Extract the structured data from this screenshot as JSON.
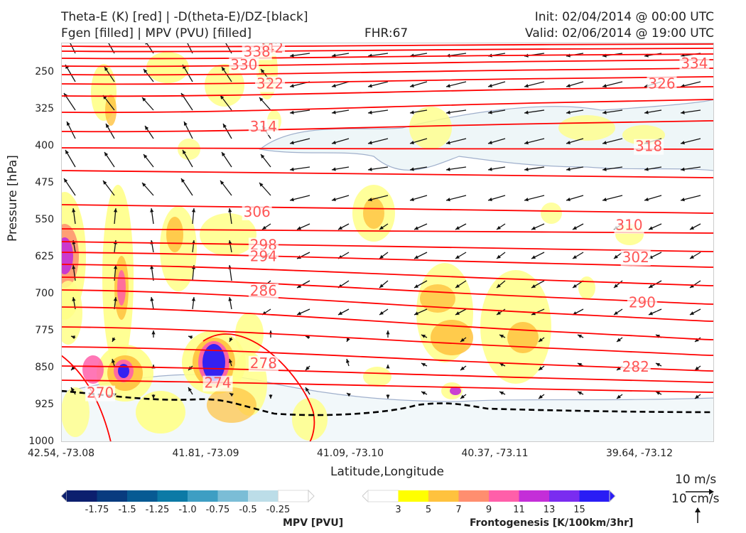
{
  "header": {
    "title_line1": "Theta-E (K) [red] | -D(theta-E)/DZ-[black]",
    "title_line2": "Fgen [filled] | MPV (PVU) [filled]",
    "fhr": "FHR:67",
    "init": "Init: 02/04/2014 @ 00:00 UTC",
    "valid": "Valid: 02/06/2014 @ 19:00 UTC"
  },
  "chart_data": {
    "type": "cross-section",
    "title": "Theta-E (K) [red] | -D(theta-E)/DZ-[black] / Fgen [filled] | MPV (PVU) [filled]",
    "xlabel": "Latitude,Longitude",
    "ylabel": "Pressure [hPa]",
    "x_ticks": [
      "42.54, -73.08",
      "41.81, -73.09",
      "41.09, -73.10",
      "40.37, -73.11",
      "39.64, -73.12"
    ],
    "y_ticks": [
      250,
      325,
      400,
      475,
      550,
      625,
      700,
      775,
      850,
      925,
      1000
    ],
    "ylim": [
      1000,
      190
    ],
    "y_inverted": true,
    "theta_e_contour_labels": [
      {
        "value": 342,
        "x": 0.32,
        "p": 200
      },
      {
        "value": 338,
        "x": 0.3,
        "p": 208
      },
      {
        "value": 330,
        "x": 0.28,
        "p": 235
      },
      {
        "value": 334,
        "x": 0.97,
        "p": 232
      },
      {
        "value": 322,
        "x": 0.32,
        "p": 273
      },
      {
        "value": 326,
        "x": 0.92,
        "p": 273
      },
      {
        "value": 314,
        "x": 0.31,
        "p": 360
      },
      {
        "value": 318,
        "x": 0.9,
        "p": 400
      },
      {
        "value": 306,
        "x": 0.3,
        "p": 533
      },
      {
        "value": 310,
        "x": 0.87,
        "p": 560
      },
      {
        "value": 298,
        "x": 0.31,
        "p": 600
      },
      {
        "value": 294,
        "x": 0.31,
        "p": 623
      },
      {
        "value": 302,
        "x": 0.88,
        "p": 625
      },
      {
        "value": 286,
        "x": 0.31,
        "p": 693
      },
      {
        "value": 290,
        "x": 0.89,
        "p": 717
      },
      {
        "value": 278,
        "x": 0.31,
        "p": 840
      },
      {
        "value": 282,
        "x": 0.88,
        "p": 847
      },
      {
        "value": 274,
        "x": 0.24,
        "p": 880
      },
      {
        "value": 270,
        "x": 0.06,
        "p": 900
      }
    ],
    "colorbars": [
      {
        "name": "MPV [PVU]",
        "levels": [
          "-1.75",
          "-1.5",
          "-1.25",
          "-1.0",
          "-0.75",
          "-0.5",
          "-0.25"
        ],
        "colors": [
          "#0c1f6e",
          "#083b7f",
          "#075a93",
          "#0c7aa6",
          "#3e9ec3",
          "#7bbdd6",
          "#bcdde8",
          "#ffffff"
        ]
      },
      {
        "name": "Frontogenesis [K/100km/3hr]",
        "levels": [
          "3",
          "5",
          "7",
          "9",
          "11",
          "13",
          "15"
        ],
        "colors": [
          "#ffffff",
          "#ffff00",
          "#ffc23e",
          "#ff8e6f",
          "#ff5fa9",
          "#c42ed8",
          "#7a2cf0",
          "#2a1df5"
        ]
      }
    ],
    "vector_reference": [
      "10 m/s",
      "10 cm/s"
    ],
    "legend": "bottom"
  },
  "colors": {
    "theta_e": "#ff0000",
    "theta_e_label": "#ff5555",
    "dashed_surface": "#000000",
    "mpv_outline": "#a0b0cc"
  }
}
